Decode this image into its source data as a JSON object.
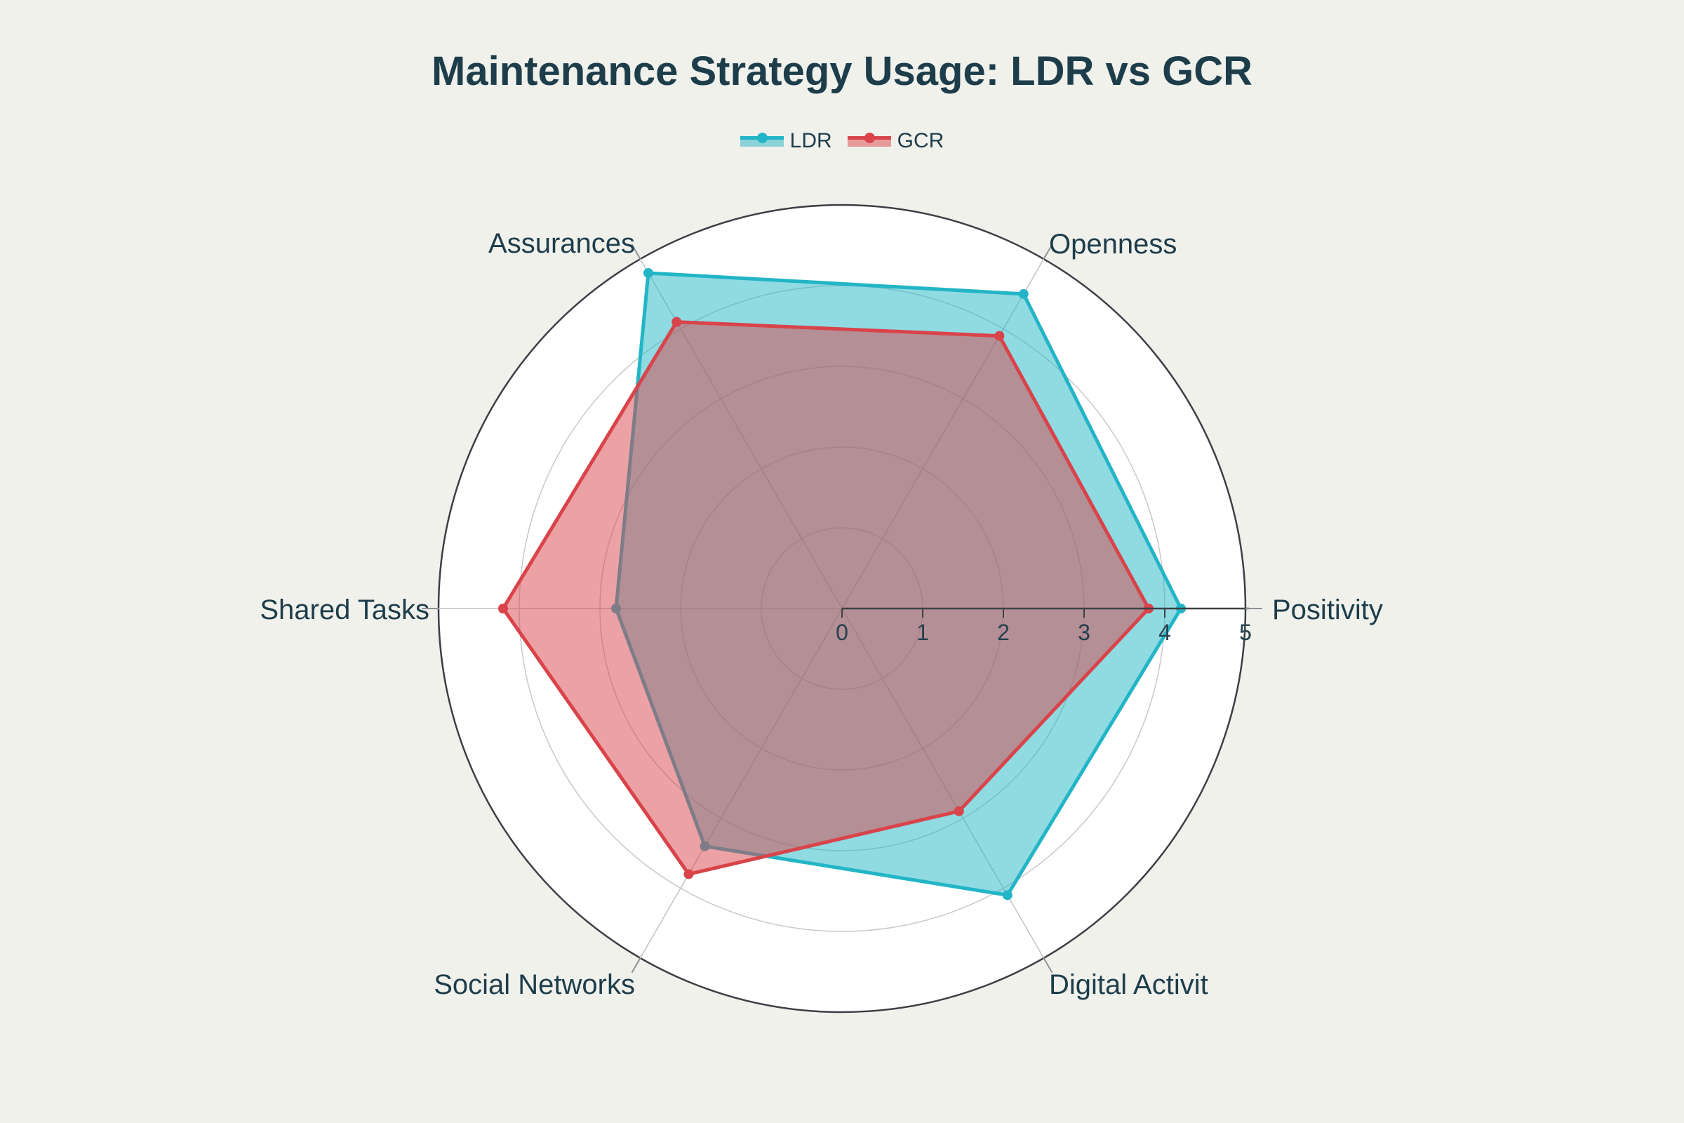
{
  "title": "Maintenance Strategy Usage: LDR vs GCR",
  "legend": {
    "items": [
      {
        "label": "LDR",
        "color": "#22b5c6"
      },
      {
        "label": "GCR",
        "color": "#d9434a"
      }
    ]
  },
  "chart_data": {
    "type": "radar",
    "title": "Maintenance Strategy Usage: LDR vs GCR",
    "categories": [
      "Positivity",
      "Openness",
      "Assurances",
      "Shared Tasks",
      "Social Networks",
      "Digital Activit"
    ],
    "series": [
      {
        "name": "LDR",
        "color": "#22b5c6",
        "values": [
          4.2,
          4.5,
          4.8,
          2.8,
          3.4,
          4.1
        ]
      },
      {
        "name": "GCR",
        "color": "#d9434a",
        "values": [
          3.8,
          3.9,
          4.1,
          4.2,
          3.8,
          2.9
        ]
      }
    ],
    "radial_ticks": [
      "0",
      "1",
      "2",
      "3",
      "4",
      "5"
    ],
    "radial_range": [
      0,
      5
    ],
    "fill_opacity": 0.5,
    "angular_start": "east",
    "direction": "counterclockwise",
    "grid": true,
    "legend_position": "top-center",
    "colors": {
      "background": "#f1f1ec",
      "plot_circle_fill": "#ffffff",
      "outer_circle_stroke": "#3b4045",
      "grid_line": "#c9c9c9",
      "spoke_line": "#c2c2c2",
      "axis_line": "#3c4145",
      "angular_tick": "#8d9296",
      "text": "#1d3d4b",
      "tick_text": "#24404d"
    }
  }
}
